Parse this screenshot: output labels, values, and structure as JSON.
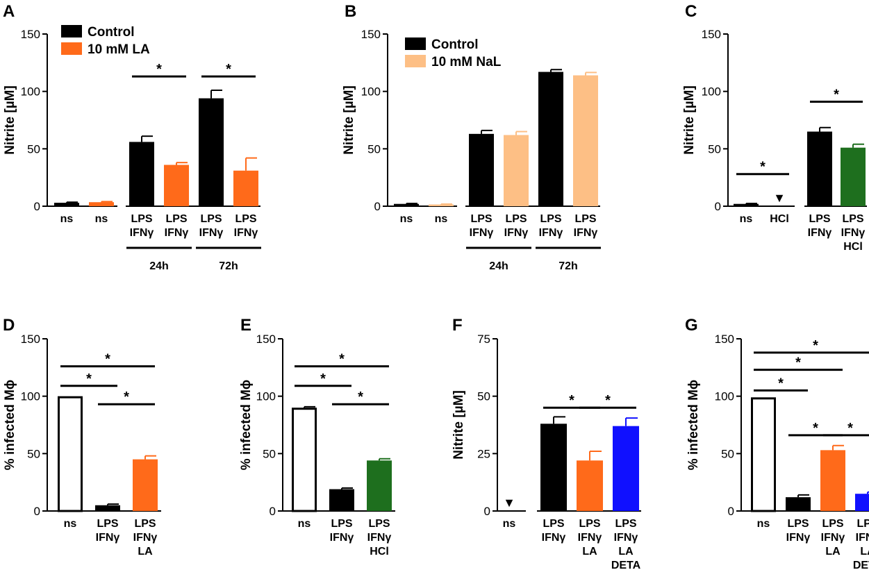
{
  "chart_data": [
    {
      "panel": "A",
      "type": "bar",
      "ylabel": "Nitrite [µM]",
      "ylim": [
        0,
        150
      ],
      "yticks": [
        "0",
        "50",
        "100",
        "150"
      ],
      "legend": [
        {
          "label": "Control",
          "color": "#000000"
        },
        {
          "label": "10 mM LA",
          "color": "#FF6A1A"
        }
      ],
      "bars": [
        {
          "label": [
            "ns"
          ],
          "value": 3,
          "error": 0.5,
          "color": "#000000",
          "fill": true
        },
        {
          "label": [
            "ns"
          ],
          "value": 3.5,
          "error": 0.5,
          "color": "#FF6A1A",
          "fill": true
        },
        {
          "label": [
            "LPS",
            "IFNγ"
          ],
          "value": 56,
          "error": 5,
          "color": "#000000",
          "fill": true
        },
        {
          "label": [
            "LPS",
            "IFNγ"
          ],
          "value": 36,
          "error": 2,
          "color": "#FF6A1A",
          "fill": true
        },
        {
          "label": [
            "LPS",
            "IFNγ"
          ],
          "value": 94,
          "error": 7,
          "color": "#000000",
          "fill": true
        },
        {
          "label": [
            "LPS",
            "IFNγ"
          ],
          "value": 31,
          "error": 11,
          "color": "#FF6A1A",
          "fill": true
        }
      ],
      "gaps_after": [
        1
      ],
      "groups": [
        {
          "label": "24h",
          "from": 2,
          "to": 3
        },
        {
          "label": "72h",
          "from": 4,
          "to": 5
        }
      ],
      "significance": [
        {
          "from": 2,
          "to": 3,
          "y": 113
        },
        {
          "from": 4,
          "to": 5,
          "y": 113
        }
      ]
    },
    {
      "panel": "B",
      "type": "bar",
      "ylabel": "Nitrite [µM]",
      "ylim": [
        0,
        150
      ],
      "yticks": [
        "0",
        "50",
        "100",
        "150"
      ],
      "legend": [
        {
          "label": "Control",
          "color": "#000000"
        },
        {
          "label": "10 mM NaL",
          "color": "#FDBF85"
        }
      ],
      "bars": [
        {
          "label": [
            "ns"
          ],
          "value": 2,
          "error": 0.4,
          "color": "#000000",
          "fill": true
        },
        {
          "label": [
            "ns"
          ],
          "value": 1.5,
          "error": 0.4,
          "color": "#FDBF85",
          "fill": true
        },
        {
          "label": [
            "LPS",
            "IFNγ"
          ],
          "value": 63,
          "error": 3,
          "color": "#000000",
          "fill": true
        },
        {
          "label": [
            "LPS",
            "IFNγ"
          ],
          "value": 62,
          "error": 3,
          "color": "#FDBF85",
          "fill": true
        },
        {
          "label": [
            "LPS",
            "IFNγ"
          ],
          "value": 117,
          "error": 2,
          "color": "#000000",
          "fill": true
        },
        {
          "label": [
            "LPS",
            "IFNγ"
          ],
          "value": 114,
          "error": 2.5,
          "color": "#FDBF85",
          "fill": true
        }
      ],
      "gaps_after": [
        1
      ],
      "groups": [
        {
          "label": "24h",
          "from": 2,
          "to": 3
        },
        {
          "label": "72h",
          "from": 4,
          "to": 5
        }
      ],
      "significance": []
    },
    {
      "panel": "C",
      "type": "bar",
      "ylabel": "Nitrite [µM]",
      "ylim": [
        0,
        150
      ],
      "yticks": [
        "0",
        "50",
        "100",
        "150"
      ],
      "legend": [],
      "bars": [
        {
          "label": [
            "ns"
          ],
          "value": 2,
          "error": 0.4,
          "color": "#000000",
          "fill": true
        },
        {
          "label": [
            "HCl"
          ],
          "value": 0,
          "error": 0,
          "color": "#000000",
          "fill": true,
          "marker": "▼"
        },
        {
          "label": [
            "LPS",
            "IFNγ"
          ],
          "value": 65,
          "error": 3.5,
          "color": "#000000",
          "fill": true
        },
        {
          "label": [
            "LPS",
            "IFNγ",
            "HCl"
          ],
          "value": 51,
          "error": 3,
          "color": "#1E6F1E",
          "fill": true
        }
      ],
      "gaps_after": [
        1
      ],
      "groups": [],
      "significance": [
        {
          "from": 0,
          "to": 1,
          "y": 28
        },
        {
          "from": 2,
          "to": 3,
          "y": 91
        }
      ]
    },
    {
      "panel": "D",
      "type": "bar",
      "ylabel": "% infected Mϕ",
      "ylim": [
        0,
        150
      ],
      "yticks": [
        "0",
        "50",
        "100",
        "150"
      ],
      "legend": [],
      "bars": [
        {
          "label": [
            "ns"
          ],
          "value": 100,
          "error": 0,
          "color": "#000000",
          "fill": false
        },
        {
          "label": [
            "LPS",
            "IFNγ"
          ],
          "value": 5,
          "error": 1,
          "color": "#000000",
          "fill": true
        },
        {
          "label": [
            "LPS",
            "IFNγ",
            "LA"
          ],
          "value": 45,
          "error": 3,
          "color": "#FF6A1A",
          "fill": true
        }
      ],
      "gaps_after": [],
      "groups": [],
      "significance": [
        {
          "from": 0,
          "to": 2,
          "y": 126
        },
        {
          "from": 0,
          "to": 1,
          "y": 109
        },
        {
          "from": 1,
          "to": 2,
          "y": 93
        }
      ]
    },
    {
      "panel": "E",
      "type": "bar",
      "ylabel": "% infected Mϕ",
      "ylim": [
        0,
        150
      ],
      "yticks": [
        "0",
        "50",
        "100",
        "150"
      ],
      "legend": [],
      "bars": [
        {
          "label": [
            "ns"
          ],
          "value": 90,
          "error": 0.8,
          "color": "#000000",
          "fill": false
        },
        {
          "label": [
            "LPS",
            "IFNγ"
          ],
          "value": 19,
          "error": 1,
          "color": "#000000",
          "fill": true
        },
        {
          "label": [
            "LPS",
            "IFNγ",
            "HCl"
          ],
          "value": 44,
          "error": 1.5,
          "color": "#1E6F1E",
          "fill": true
        }
      ],
      "gaps_after": [],
      "groups": [],
      "significance": [
        {
          "from": 0,
          "to": 2,
          "y": 126
        },
        {
          "from": 0,
          "to": 1,
          "y": 109
        },
        {
          "from": 1,
          "to": 2,
          "y": 93
        }
      ]
    },
    {
      "panel": "F",
      "type": "bar",
      "ylabel": "Nitrite [µM]",
      "ylim": [
        0,
        75
      ],
      "yticks": [
        "0",
        "25",
        "50",
        "75"
      ],
      "legend": [],
      "bars": [
        {
          "label": [
            "ns"
          ],
          "value": 0,
          "error": 0,
          "color": "#000000",
          "fill": true,
          "marker": "▼"
        },
        {
          "label": [
            "LPS",
            "IFNγ"
          ],
          "value": 38,
          "error": 3,
          "color": "#000000",
          "fill": true
        },
        {
          "label": [
            "LPS",
            "IFNγ",
            "LA"
          ],
          "value": 22,
          "error": 4,
          "color": "#FF6A1A",
          "fill": true
        },
        {
          "label": [
            "LPS",
            "IFNγ",
            "LA",
            "DETA"
          ],
          "value": 37,
          "error": 3.5,
          "color": "#1010FF",
          "fill": true
        }
      ],
      "gaps_after": [
        0
      ],
      "groups": [],
      "significance": [
        {
          "from": 1,
          "to": 2,
          "y": 45
        },
        {
          "from": 2,
          "to": 3,
          "y": 45
        }
      ]
    },
    {
      "panel": "G",
      "type": "bar",
      "ylabel": "% infected Mϕ",
      "ylim": [
        0,
        150
      ],
      "yticks": [
        "0",
        "50",
        "100",
        "150"
      ],
      "legend": [],
      "bars": [
        {
          "label": [
            "ns"
          ],
          "value": 99,
          "error": 0,
          "color": "#000000",
          "fill": false
        },
        {
          "label": [
            "LPS",
            "IFNγ"
          ],
          "value": 12,
          "error": 2,
          "color": "#000000",
          "fill": true
        },
        {
          "label": [
            "LPS",
            "IFNγ",
            "LA"
          ],
          "value": 53,
          "error": 4,
          "color": "#FF6A1A",
          "fill": true
        },
        {
          "label": [
            "LPS",
            "IFNγ",
            "LA",
            "DETA"
          ],
          "value": 15,
          "error": 1.5,
          "color": "#1010FF",
          "fill": true
        }
      ],
      "gaps_after": [],
      "groups": [],
      "significance": [
        {
          "from": 0,
          "to": 3,
          "y": 138
        },
        {
          "from": 0,
          "to": 2,
          "y": 123
        },
        {
          "from": 0,
          "to": 1,
          "y": 105
        },
        {
          "from": 1,
          "to": 2,
          "y": 66
        },
        {
          "from": 2,
          "to": 3,
          "y": 66
        }
      ]
    }
  ]
}
